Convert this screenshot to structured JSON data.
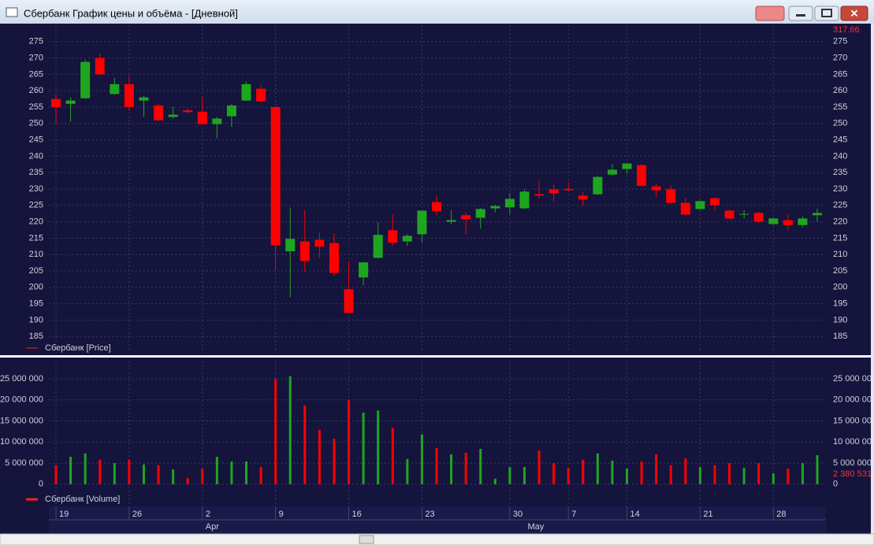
{
  "window": {
    "title": "Сбербанк График цены и объёма - [Дневной]"
  },
  "chart_data": [
    {
      "type": "candlestick",
      "legend": "Сбербанк [Price]",
      "categories": [
        "19",
        null,
        null,
        null,
        null,
        "26",
        null,
        null,
        null,
        null,
        "2",
        null,
        null,
        null,
        null,
        "9",
        null,
        null,
        null,
        null,
        "16",
        null,
        null,
        null,
        null,
        "23",
        null,
        null,
        null,
        null,
        null,
        "30",
        null,
        null,
        null,
        "7",
        null,
        null,
        null,
        "14",
        null,
        null,
        null,
        null,
        "21",
        null,
        null,
        null,
        null,
        "28",
        null,
        null,
        null
      ],
      "months": [
        {
          "label": "Apr",
          "at": 10
        },
        {
          "label": "May",
          "at": 32
        }
      ],
      "open": [
        257.5,
        256,
        257.7,
        270,
        259,
        262,
        257,
        255.5,
        252,
        254,
        253.6,
        249.8,
        252.2,
        257,
        260.6,
        255,
        211,
        214,
        214.5,
        213.5,
        199.4,
        203,
        209,
        217.4,
        214,
        216.2,
        226,
        220,
        222,
        221.2,
        224.1,
        224.4,
        224.1,
        228.4,
        229.9,
        230,
        228,
        228.4,
        234.4,
        236.1,
        237.3,
        230.8,
        229.9,
        225.8,
        223.9,
        227.2,
        223.4,
        222.2,
        222.7,
        219.3,
        220.5,
        219,
        222
      ],
      "high": [
        259,
        258,
        269.5,
        271.4,
        264,
        264.5,
        258.5,
        256,
        255,
        254.5,
        258,
        252,
        256,
        262.8,
        261.8,
        255.2,
        224.4,
        223.6,
        216.7,
        216.4,
        207.8,
        207.8,
        219.8,
        222.2,
        216.2,
        223.6,
        228,
        223.6,
        223,
        224.2,
        225.2,
        228.7,
        229.9,
        232.5,
        231.3,
        232,
        229,
        233.9,
        237.6,
        238,
        237.5,
        231.5,
        231,
        227.2,
        226.5,
        227.4,
        223.8,
        223.6,
        223,
        221.4,
        222.2,
        221.6,
        224
      ],
      "low": [
        249.8,
        250.5,
        257.5,
        264.7,
        258.7,
        253.9,
        252,
        250.8,
        251.5,
        253,
        249.6,
        245.5,
        249,
        256.8,
        256.5,
        205,
        197,
        204.7,
        209,
        203.5,
        192,
        200.6,
        208.8,
        212.6,
        212.6,
        213.8,
        222,
        219.3,
        216.2,
        217.9,
        222.9,
        222.2,
        223.9,
        227.2,
        226,
        229.3,
        224.8,
        228.2,
        234.2,
        234.7,
        230.8,
        227.5,
        225.5,
        222,
        223.6,
        223.6,
        220.8,
        221,
        219.6,
        219,
        217.4,
        218.3,
        220
      ],
      "close": [
        255,
        257,
        268.8,
        265,
        262,
        255,
        258,
        251,
        252.7,
        253.5,
        249.8,
        251.5,
        255.5,
        262,
        256.8,
        212.8,
        214.8,
        208,
        212.4,
        204.4,
        192.2,
        207.6,
        216,
        213.6,
        215.7,
        223.4,
        223.2,
        220.5,
        220.8,
        223.9,
        224.8,
        227,
        229.2,
        228,
        228.7,
        229.6,
        226.8,
        233.7,
        235.9,
        237.8,
        231,
        229.6,
        225.8,
        222.2,
        226.3,
        225.1,
        221,
        222.4,
        220,
        221,
        219,
        221,
        222.7
      ],
      "up_color": "#1fa61f",
      "down_color": "#ff0000",
      "ylim": [
        180,
        280
      ],
      "yticks": [
        185,
        190,
        195,
        200,
        205,
        210,
        215,
        220,
        225,
        230,
        235,
        240,
        245,
        250,
        255,
        260,
        265,
        270,
        275
      ],
      "annotation": "317.66",
      "grid": true
    },
    {
      "type": "bar",
      "legend": "Сбербанк [Volume]",
      "values": [
        4500000,
        6500000,
        7300000,
        5800000,
        5000000,
        5800000,
        4700000,
        4500000,
        3500000,
        1500000,
        3700000,
        6500000,
        5400000,
        5400000,
        4100000,
        25000000,
        25600000,
        18700000,
        12900000,
        10800000,
        20000000,
        17000000,
        17500000,
        13400000,
        6000000,
        11800000,
        8600000,
        7100000,
        7500000,
        8400000,
        1300000,
        4100000,
        4100000,
        8000000,
        5000000,
        3900000,
        5800000,
        7300000,
        5600000,
        3700000,
        5400000,
        7100000,
        4500000,
        6200000,
        4100000,
        4500000,
        5000000,
        3900000,
        5000000,
        2600000,
        3700000,
        5000000,
        6900000
      ],
      "ylim": [
        -4700000,
        29300000
      ],
      "yticks": [
        0,
        {
          "value": 5000000,
          "label": "5 000 000"
        },
        {
          "value": 10000000,
          "label": "10 000 000"
        },
        {
          "value": 15000000,
          "label": "15 000 000"
        },
        {
          "value": 20000000,
          "label": "20 000 000"
        },
        {
          "value": 25000000,
          "label": "25 000 000"
        }
      ],
      "annotation": "2 380 531",
      "grid": true
    }
  ]
}
